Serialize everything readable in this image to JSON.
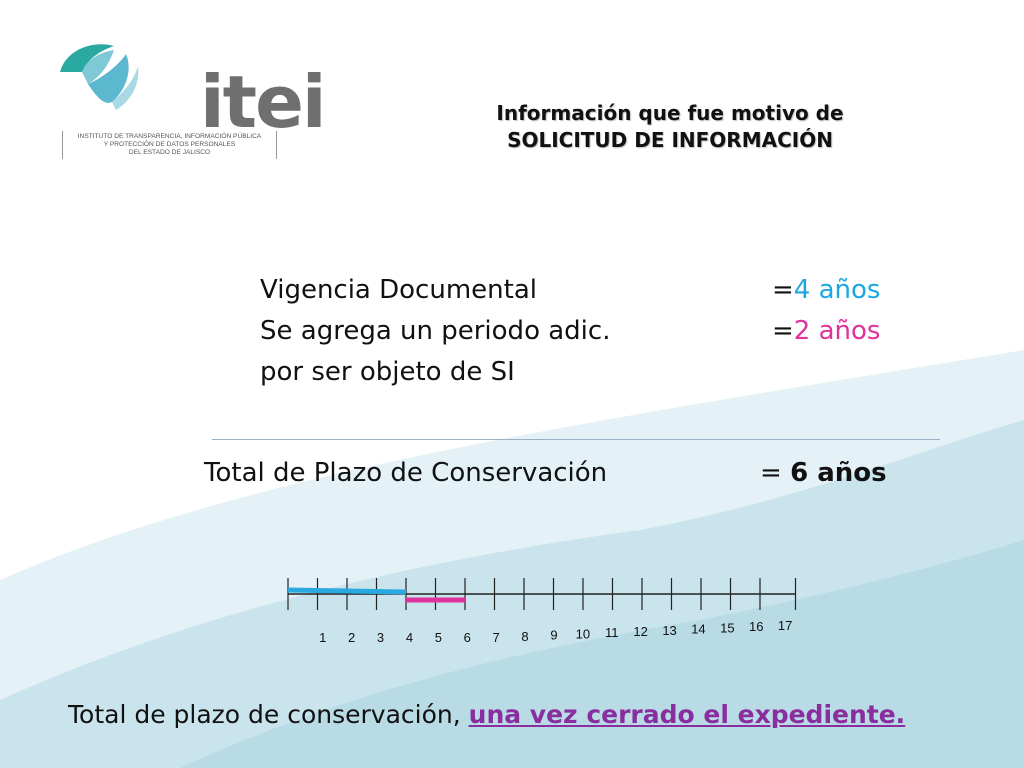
{
  "logo": {
    "word": "itei",
    "subtitle_lines": [
      "INSTITUTO DE TRANSPARENCIA, INFORMACIÓN PÚBLICA",
      "Y PROTECCIÓN DE DATOS PERSONALES",
      "DEL ESTADO DE JALISCO"
    ]
  },
  "heading": {
    "line1": "Información que fue motivo de",
    "line2": "SOLICITUD DE INFORMACIÓN"
  },
  "rows": {
    "vigencia_label": "Vigencia Documental",
    "vigencia_eq": "=",
    "vigencia_value": "4 años",
    "adic_label": "Se agrega un periodo adic.",
    "adic_eq": "=",
    "adic_value": "2 años",
    "adic_label2": "por ser objeto de SI"
  },
  "total": {
    "label": "Total de Plazo de Conservación",
    "eq": "= ",
    "value": "6 años"
  },
  "timeline": {
    "ticks": [
      "1",
      "2",
      "3",
      "4",
      "5",
      "6",
      "7",
      "8",
      "9",
      "10",
      "11",
      "12",
      "13",
      "14",
      "15",
      "16",
      "17"
    ],
    "blue_years": 4,
    "pink_years": 2,
    "blue_color": "#29a9e0",
    "pink_color": "#e0329c"
  },
  "footer": {
    "text": "Total de plazo de conservación, ",
    "link": "una vez cerrado el expediente."
  },
  "colors": {
    "accent_blue": "#1da7e0",
    "accent_pink": "#e0329c",
    "link_purple": "#8a2d9e",
    "bg_light": "#dcedf4",
    "bg_mid": "#c2e1ea"
  }
}
